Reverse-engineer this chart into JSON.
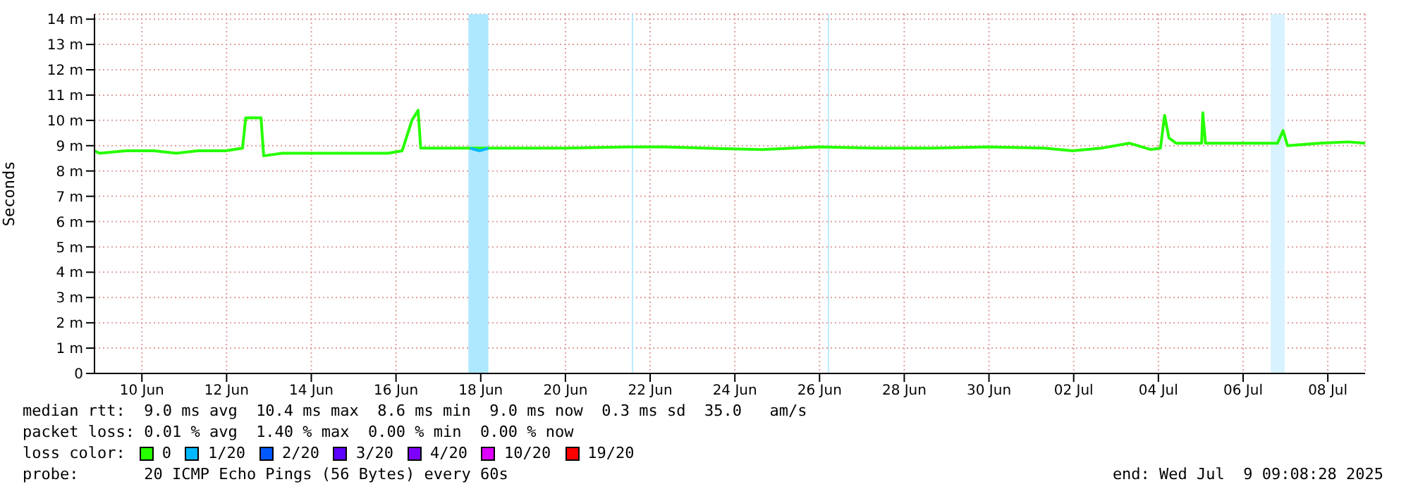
{
  "chart_data": {
    "type": "line",
    "ylabel": "Seconds",
    "legend_title": "loss color:",
    "legend": "bottom",
    "grid": true,
    "marker": "none",
    "line_style": "solid",
    "xlim": [
      "2025-06-09T09:08",
      "2025-07-09T09:08"
    ],
    "xticks": [
      {
        "value": "2025-06-10T12:00",
        "label": "10 Jun"
      },
      {
        "value": "2025-06-12T12:00",
        "label": "12 Jun"
      },
      {
        "value": "2025-06-14T12:00",
        "label": "14 Jun"
      },
      {
        "value": "2025-06-16T12:00",
        "label": "16 Jun"
      },
      {
        "value": "2025-06-18T12:00",
        "label": "18 Jun"
      },
      {
        "value": "2025-06-20T12:00",
        "label": "20 Jun"
      },
      {
        "value": "2025-06-22T12:00",
        "label": "22 Jun"
      },
      {
        "value": "2025-06-24T12:00",
        "label": "24 Jun"
      },
      {
        "value": "2025-06-26T12:00",
        "label": "26 Jun"
      },
      {
        "value": "2025-06-28T12:00",
        "label": "28 Jun"
      },
      {
        "value": "2025-06-30T12:00",
        "label": "30 Jun"
      },
      {
        "value": "2025-07-02T12:00",
        "label": "02 Jul"
      },
      {
        "value": "2025-07-04T12:00",
        "label": "04 Jul"
      },
      {
        "value": "2025-07-06T12:00",
        "label": "06 Jul"
      },
      {
        "value": "2025-07-08T12:00",
        "label": "08 Jul"
      }
    ],
    "ylim": [
      0,
      14.2
    ],
    "yticks": [
      0,
      {
        "value": 1,
        "label": "1 m"
      },
      {
        "value": 2,
        "label": "2 m"
      },
      {
        "value": 3,
        "label": "3 m"
      },
      {
        "value": 4,
        "label": "4 m"
      },
      {
        "value": 5,
        "label": "5 m"
      },
      {
        "value": 6,
        "label": "6 m"
      },
      {
        "value": 7,
        "label": "7 m"
      },
      {
        "value": 8,
        "label": "8 m"
      },
      {
        "value": 9,
        "label": "9 m"
      },
      {
        "value": 10,
        "label": "10 m"
      },
      {
        "value": 11,
        "label": "11 m"
      },
      {
        "value": 12,
        "label": "12 m"
      },
      {
        "value": 13,
        "label": "13 m"
      },
      {
        "value": 14,
        "label": "14 m"
      }
    ],
    "series": [
      {
        "name": "0",
        "color": "#26ff00",
        "x": [
          "2025-06-09T09:08",
          "2025-06-09T12:00",
          "2025-06-10T03:00",
          "2025-06-10T19:00",
          "2025-06-11T07:30",
          "2025-06-11T19:30",
          "2025-06-12T11:30",
          "2025-06-12T21:00",
          "2025-06-12T22:50",
          "2025-06-13T07:30",
          "2025-06-13T09:00",
          "2025-06-13T19:30",
          "2025-06-15T03:30",
          "2025-06-16T07:30",
          "2025-06-16T15:30",
          "2025-06-16T21:00",
          "2025-06-17T00:30",
          "2025-06-17T02:00",
          "2025-06-17T19:30",
          "2025-06-18T06:00",
          "2025-06-18T16:20",
          "2025-06-19T11:30",
          "2025-06-20T11:30",
          "2025-06-22T00:20",
          "2025-06-22T19:30",
          "2025-06-23T19:30",
          "2025-06-25T03:30",
          "2025-06-26T11:30",
          "2025-06-27T19:30",
          "2025-06-29T03:30",
          "2025-06-30T11:30",
          "2025-07-01T19:30",
          "2025-07-02T11:30",
          "2025-07-03T03:30",
          "2025-07-03T19:30",
          "2025-07-04T07:30",
          "2025-07-04T13:10",
          "2025-07-04T15:30",
          "2025-07-04T18:00",
          "2025-07-04T22:00",
          "2025-07-05T12:30",
          "2025-07-05T13:10",
          "2025-07-05T14:40",
          "2025-07-06T11:30",
          "2025-07-07T07:30",
          "2025-07-07T10:40",
          "2025-07-07T13:10",
          "2025-07-08T07:30",
          "2025-07-08T23:30",
          "2025-07-09T09:08"
        ],
        "values": [
          8.8,
          8.7,
          8.8,
          8.8,
          8.7,
          8.8,
          8.8,
          8.9,
          10.1,
          10.1,
          8.6,
          8.7,
          8.7,
          8.7,
          8.8,
          10.0,
          10.4,
          8.9,
          8.9,
          8.9,
          8.9,
          8.9,
          8.9,
          8.95,
          8.95,
          8.9,
          8.85,
          8.95,
          8.9,
          8.9,
          8.95,
          8.9,
          8.8,
          8.9,
          9.1,
          8.85,
          8.9,
          10.2,
          9.3,
          9.1,
          9.1,
          10.3,
          9.1,
          9.1,
          9.1,
          9.6,
          9.0,
          9.1,
          9.15,
          9.1
        ]
      },
      {
        "name": "1/20",
        "color": "#00b8ff",
        "x": [
          "2025-06-18T06:00",
          "2025-06-18T11:30",
          "2025-06-18T16:20"
        ],
        "values": [
          8.9,
          8.8,
          8.9
        ]
      },
      {
        "name": "2/20",
        "color": "#0059ff"
      },
      {
        "name": "3/20",
        "color": "#5e00ff"
      },
      {
        "name": "4/20",
        "color": "#7e00ff"
      },
      {
        "name": "10/20",
        "color": "#dd00ff"
      },
      {
        "name": "19/20",
        "color": "#ff0000"
      }
    ],
    "bands": [
      {
        "axis": "x",
        "from": "2025-06-18T05:00",
        "to": "2025-06-18T16:20",
        "color": "#aee8ff"
      },
      {
        "axis": "x",
        "from": "2025-06-22T01:40",
        "to": "2025-06-22T02:20",
        "color": "#aee8ff"
      },
      {
        "axis": "x",
        "from": "2025-06-26T16:40",
        "to": "2025-06-26T17:20",
        "color": "#aee8ff"
      },
      {
        "axis": "x",
        "from": "2025-07-07T03:40",
        "to": "2025-07-07T11:30",
        "color": "#d8f2ff"
      }
    ],
    "annotations": [
      "median rtt:  9.0 ms avg  10.4 ms max  8.6 ms min  9.0 ms now  0.3 ms sd  35.0   am/s",
      "packet loss: 0.01 % avg  1.40 % max  0.00 % min  0.00 % now",
      "probe:       20 ICMP Echo Pings (56 Bytes) every 60s",
      "end: Wed Jul  9 09:08:28 2025"
    ]
  }
}
